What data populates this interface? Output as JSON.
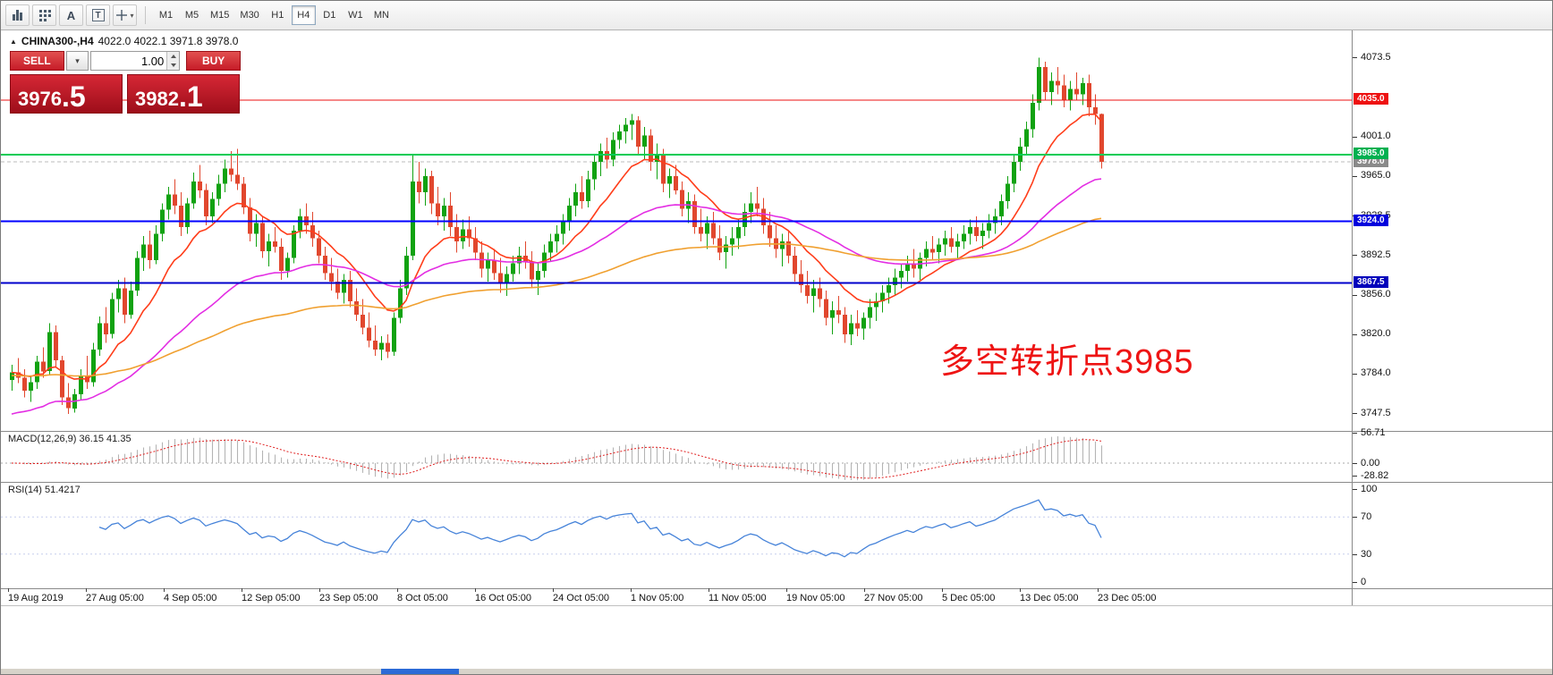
{
  "toolbar": {
    "icons": [
      {
        "name": "chart-type-icon",
        "glyph": ""
      },
      {
        "name": "indicators-icon",
        "glyph": ""
      },
      {
        "name": "text-annotation-icon",
        "glyph": "A"
      },
      {
        "name": "text-label-icon",
        "glyph": "T"
      },
      {
        "name": "crosshair-tool-icon",
        "glyph": "+"
      }
    ],
    "timeframes": [
      "M1",
      "M5",
      "M15",
      "M30",
      "H1",
      "H4",
      "D1",
      "W1",
      "MN"
    ],
    "active_timeframe": "H4"
  },
  "symbol_bar": {
    "symbol": "CHINA300-,H4",
    "ohlc": "4022.0 4022.1 3971.8 3978.0"
  },
  "trade_panel": {
    "sell_label": "SELL",
    "buy_label": "BUY",
    "volume": "1.00",
    "sell_price_main": "3976",
    "sell_price_frac": ".5",
    "buy_price_main": "3982",
    "buy_price_frac": ".1"
  },
  "annotation": "多空转折点3985",
  "price_axis": {
    "ticks": [
      4073.5,
      4001.0,
      3965.0,
      3928.5,
      3892.5,
      3856.0,
      3820.0,
      3784.0,
      3747.5
    ],
    "level_labels": [
      {
        "value": "4035.0",
        "bg": "#ee1111",
        "price": 4035.0
      },
      {
        "value": "3978.0",
        "bg": "#8a8a8a",
        "price": 3978.0
      },
      {
        "value": "3985.0",
        "bg": "#00b050",
        "price": 3985.0
      },
      {
        "value": "3924.0",
        "bg": "#0000dd",
        "price": 3924.0
      },
      {
        "value": "3867.5",
        "bg": "#0000bb",
        "price": 3867.5
      }
    ]
  },
  "time_axis": {
    "labels": [
      "19 Aug 2019",
      "27 Aug 05:00",
      "4 Sep 05:00",
      "12 Sep 05:00",
      "23 Sep 05:00",
      "8 Oct 05:00",
      "16 Oct 05:00",
      "24 Oct 05:00",
      "1 Nov 05:00",
      "11 Nov 05:00",
      "19 Nov 05:00",
      "27 Nov 05:00",
      "5 Dec 05:00",
      "13 Dec 05:00",
      "23 Dec 05:00"
    ]
  },
  "macd_panel": {
    "label": "MACD(12,26,9) 36.15 41.35",
    "axis": [
      56.71,
      0.0,
      -28.82
    ],
    "fast": 12,
    "slow": 26,
    "signal": 9
  },
  "rsi_panel": {
    "label": "RSI(14) 51.4217",
    "axis": [
      100,
      70,
      30,
      0
    ],
    "period": 14,
    "levels": [
      70,
      30
    ]
  },
  "chart_data": {
    "type": "candlestick",
    "symbol": "CHINA300-",
    "timeframe": "H4",
    "title": "CHINA300- H4 candlestick chart with MACD(12,26,9) and RSI(14)",
    "current_price": 3978.0,
    "up_color": "#11a211",
    "down_color": "#e1472e",
    "levels": [
      {
        "price": 4035.0,
        "color": "#ee1111",
        "width": 1.4
      },
      {
        "price": 3985.0,
        "color": "#00cc55",
        "width": 2
      },
      {
        "price": 3924.0,
        "color": "#0000ff",
        "width": 2
      },
      {
        "price": 3867.5,
        "color": "#0000cc",
        "width": 2
      }
    ],
    "moving_averages": [
      {
        "name": "fast-ma",
        "color": "#ff3d1a",
        "period": 13,
        "type": "ema"
      },
      {
        "name": "mid-ma",
        "color": "#e32ee3",
        "period": 45,
        "type": "ema",
        "seed": 3745
      },
      {
        "name": "slow-ma",
        "color": "#f0a030",
        "period": 110,
        "type": "ema",
        "seed": 3782
      }
    ],
    "ylim": [
      3731,
      4098
    ],
    "candles_ohlc": [
      [
        3778,
        3792,
        3768,
        3785
      ],
      [
        3785,
        3798,
        3775,
        3780
      ],
      [
        3780,
        3788,
        3762,
        3768
      ],
      [
        3768,
        3782,
        3758,
        3776
      ],
      [
        3776,
        3800,
        3770,
        3795
      ],
      [
        3795,
        3808,
        3780,
        3786
      ],
      [
        3786,
        3830,
        3782,
        3822
      ],
      [
        3822,
        3828,
        3790,
        3796
      ],
      [
        3796,
        3800,
        3755,
        3762
      ],
      [
        3762,
        3775,
        3747,
        3752
      ],
      [
        3752,
        3770,
        3748,
        3765
      ],
      [
        3765,
        3788,
        3760,
        3782
      ],
      [
        3782,
        3800,
        3770,
        3776
      ],
      [
        3776,
        3812,
        3772,
        3806
      ],
      [
        3806,
        3836,
        3800,
        3830
      ],
      [
        3830,
        3845,
        3812,
        3820
      ],
      [
        3820,
        3858,
        3816,
        3852
      ],
      [
        3852,
        3870,
        3840,
        3862
      ],
      [
        3862,
        3872,
        3830,
        3838
      ],
      [
        3838,
        3868,
        3834,
        3860
      ],
      [
        3860,
        3896,
        3855,
        3890
      ],
      [
        3890,
        3910,
        3878,
        3902
      ],
      [
        3902,
        3915,
        3880,
        3888
      ],
      [
        3888,
        3920,
        3884,
        3912
      ],
      [
        3912,
        3940,
        3905,
        3934
      ],
      [
        3934,
        3955,
        3925,
        3948
      ],
      [
        3948,
        3962,
        3930,
        3938
      ],
      [
        3938,
        3950,
        3910,
        3918
      ],
      [
        3918,
        3945,
        3912,
        3940
      ],
      [
        3940,
        3968,
        3935,
        3960
      ],
      [
        3960,
        3975,
        3945,
        3952
      ],
      [
        3952,
        3958,
        3920,
        3928
      ],
      [
        3928,
        3950,
        3922,
        3944
      ],
      [
        3944,
        3966,
        3938,
        3958
      ],
      [
        3958,
        3980,
        3950,
        3972
      ],
      [
        3972,
        3988,
        3960,
        3966
      ],
      [
        3966,
        3990,
        3952,
        3958
      ],
      [
        3958,
        3964,
        3930,
        3936
      ],
      [
        3936,
        3945,
        3905,
        3912
      ],
      [
        3912,
        3930,
        3900,
        3922
      ],
      [
        3922,
        3928,
        3890,
        3896
      ],
      [
        3896,
        3912,
        3882,
        3905
      ],
      [
        3905,
        3918,
        3895,
        3900
      ],
      [
        3900,
        3908,
        3870,
        3878
      ],
      [
        3878,
        3895,
        3872,
        3890
      ],
      [
        3890,
        3920,
        3885,
        3915
      ],
      [
        3915,
        3935,
        3908,
        3928
      ],
      [
        3928,
        3940,
        3912,
        3920
      ],
      [
        3920,
        3932,
        3900,
        3908
      ],
      [
        3908,
        3915,
        3885,
        3892
      ],
      [
        3892,
        3900,
        3870,
        3876
      ],
      [
        3876,
        3890,
        3860,
        3868
      ],
      [
        3868,
        3880,
        3852,
        3858
      ],
      [
        3858,
        3875,
        3848,
        3870
      ],
      [
        3870,
        3878,
        3845,
        3850
      ],
      [
        3850,
        3862,
        3832,
        3838
      ],
      [
        3838,
        3852,
        3820,
        3826
      ],
      [
        3826,
        3840,
        3808,
        3814
      ],
      [
        3814,
        3828,
        3800,
        3806
      ],
      [
        3806,
        3818,
        3796,
        3812
      ],
      [
        3812,
        3820,
        3798,
        3804
      ],
      [
        3804,
        3840,
        3800,
        3835
      ],
      [
        3835,
        3870,
        3830,
        3862
      ],
      [
        3862,
        3900,
        3856,
        3892
      ],
      [
        3892,
        3985,
        3888,
        3960
      ],
      [
        3960,
        3978,
        3940,
        3950
      ],
      [
        3950,
        3972,
        3938,
        3965
      ],
      [
        3965,
        3970,
        3930,
        3940
      ],
      [
        3940,
        3955,
        3920,
        3928
      ],
      [
        3928,
        3945,
        3915,
        3938
      ],
      [
        3938,
        3950,
        3910,
        3918
      ],
      [
        3918,
        3930,
        3895,
        3905
      ],
      [
        3905,
        3925,
        3898,
        3916
      ],
      [
        3916,
        3928,
        3900,
        3908
      ],
      [
        3908,
        3918,
        3888,
        3895
      ],
      [
        3895,
        3905,
        3872,
        3880
      ],
      [
        3880,
        3895,
        3868,
        3888
      ],
      [
        3888,
        3898,
        3870,
        3876
      ],
      [
        3876,
        3890,
        3858,
        3866
      ],
      [
        3866,
        3882,
        3855,
        3875
      ],
      [
        3875,
        3892,
        3868,
        3885
      ],
      [
        3885,
        3900,
        3875,
        3892
      ],
      [
        3892,
        3905,
        3880,
        3886
      ],
      [
        3886,
        3896,
        3862,
        3870
      ],
      [
        3870,
        3885,
        3856,
        3878
      ],
      [
        3878,
        3902,
        3872,
        3895
      ],
      [
        3895,
        3912,
        3886,
        3905
      ],
      [
        3905,
        3920,
        3895,
        3912
      ],
      [
        3912,
        3930,
        3902,
        3924
      ],
      [
        3924,
        3945,
        3915,
        3938
      ],
      [
        3938,
        3958,
        3928,
        3950
      ],
      [
        3950,
        3965,
        3935,
        3942
      ],
      [
        3942,
        3970,
        3936,
        3962
      ],
      [
        3962,
        3985,
        3952,
        3978
      ],
      [
        3978,
        3995,
        3965,
        3988
      ],
      [
        3988,
        4000,
        3972,
        3980
      ],
      [
        3980,
        4005,
        3974,
        3998
      ],
      [
        3998,
        4012,
        3990,
        4006
      ],
      [
        4006,
        4018,
        3995,
        4012
      ],
      [
        4012,
        4022,
        3998,
        4016
      ],
      [
        4016,
        4020,
        3985,
        3992
      ],
      [
        3992,
        4010,
        3980,
        4002
      ],
      [
        4002,
        4008,
        3970,
        3978
      ],
      [
        3978,
        3995,
        3962,
        3985
      ],
      [
        3985,
        3990,
        3950,
        3958
      ],
      [
        3958,
        3972,
        3945,
        3965
      ],
      [
        3965,
        3975,
        3948,
        3952
      ],
      [
        3952,
        3960,
        3928,
        3935
      ],
      [
        3935,
        3950,
        3922,
        3942
      ],
      [
        3942,
        3948,
        3912,
        3918
      ],
      [
        3918,
        3935,
        3905,
        3912
      ],
      [
        3912,
        3928,
        3898,
        3922
      ],
      [
        3922,
        3932,
        3902,
        3908
      ],
      [
        3908,
        3920,
        3888,
        3895
      ],
      [
        3895,
        3910,
        3880,
        3902
      ],
      [
        3902,
        3918,
        3892,
        3908
      ],
      [
        3908,
        3925,
        3898,
        3918
      ],
      [
        3918,
        3940,
        3910,
        3932
      ],
      [
        3932,
        3950,
        3922,
        3940
      ],
      [
        3940,
        3955,
        3928,
        3935
      ],
      [
        3935,
        3945,
        3912,
        3920
      ],
      [
        3920,
        3932,
        3900,
        3908
      ],
      [
        3908,
        3920,
        3890,
        3898
      ],
      [
        3898,
        3912,
        3882,
        3905
      ],
      [
        3905,
        3915,
        3885,
        3892
      ],
      [
        3892,
        3900,
        3868,
        3875
      ],
      [
        3875,
        3888,
        3858,
        3865
      ],
      [
        3865,
        3878,
        3848,
        3855
      ],
      [
        3855,
        3870,
        3840,
        3862
      ],
      [
        3862,
        3872,
        3845,
        3852
      ],
      [
        3852,
        3860,
        3828,
        3835
      ],
      [
        3835,
        3850,
        3820,
        3842
      ],
      [
        3842,
        3855,
        3830,
        3838
      ],
      [
        3838,
        3845,
        3812,
        3820
      ],
      [
        3820,
        3838,
        3810,
        3830
      ],
      [
        3830,
        3842,
        3818,
        3825
      ],
      [
        3825,
        3840,
        3815,
        3835
      ],
      [
        3835,
        3852,
        3825,
        3845
      ],
      [
        3845,
        3858,
        3832,
        3850
      ],
      [
        3850,
        3865,
        3840,
        3858
      ],
      [
        3858,
        3872,
        3848,
        3865
      ],
      [
        3865,
        3880,
        3855,
        3872
      ],
      [
        3872,
        3885,
        3862,
        3878
      ],
      [
        3878,
        3892,
        3868,
        3885
      ],
      [
        3885,
        3898,
        3872,
        3880
      ],
      [
        3880,
        3895,
        3870,
        3890
      ],
      [
        3890,
        3905,
        3882,
        3898
      ],
      [
        3898,
        3910,
        3888,
        3895
      ],
      [
        3895,
        3908,
        3885,
        3902
      ],
      [
        3902,
        3915,
        3892,
        3908
      ],
      [
        3908,
        3918,
        3895,
        3900
      ],
      [
        3900,
        3912,
        3888,
        3905
      ],
      [
        3905,
        3920,
        3898,
        3912
      ],
      [
        3912,
        3925,
        3902,
        3918
      ],
      [
        3918,
        3928,
        3905,
        3910
      ],
      [
        3910,
        3922,
        3898,
        3915
      ],
      [
        3915,
        3930,
        3908,
        3922
      ],
      [
        3922,
        3935,
        3912,
        3928
      ],
      [
        3928,
        3948,
        3920,
        3942
      ],
      [
        3942,
        3965,
        3935,
        3958
      ],
      [
        3958,
        3985,
        3950,
        3978
      ],
      [
        3978,
        4000,
        3970,
        3992
      ],
      [
        3992,
        4015,
        3985,
        4008
      ],
      [
        4008,
        4040,
        4000,
        4032
      ],
      [
        4032,
        4073.5,
        4025,
        4065
      ],
      [
        4065,
        4070,
        4035,
        4042
      ],
      [
        4042,
        4060,
        4030,
        4052
      ],
      [
        4052,
        4065,
        4040,
        4048
      ],
      [
        4048,
        4058,
        4028,
        4035
      ],
      [
        4035,
        4052,
        4025,
        4045
      ],
      [
        4045,
        4060,
        4035,
        4040
      ],
      [
        4040,
        4055,
        4030,
        4050
      ],
      [
        4050,
        4058,
        4020,
        4028
      ],
      [
        4028,
        4040,
        4012,
        4022
      ],
      [
        4022,
        4022.1,
        3971.8,
        3978
      ]
    ]
  }
}
